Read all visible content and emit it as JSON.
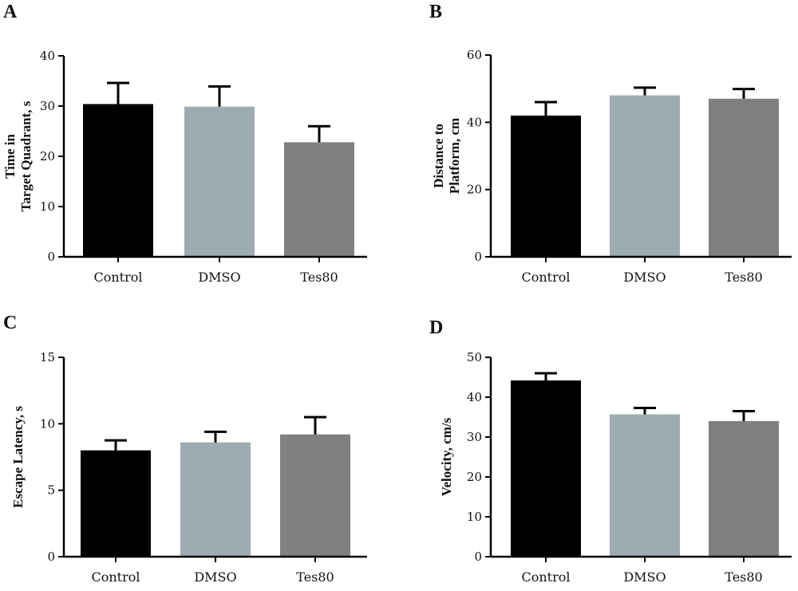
{
  "chart_data": [
    {
      "type": "bar",
      "panel": "A",
      "categories": [
        "Control",
        "DMSO",
        "Tes80"
      ],
      "values": [
        30.4,
        29.9,
        22.8
      ],
      "errors": [
        4.2,
        4.0,
        3.2
      ],
      "colors": [
        "#000000",
        "#9eacb1",
        "#808080"
      ],
      "ylabel": [
        "Time in",
        "Target Quadrant, s"
      ],
      "ylim": [
        0,
        40
      ],
      "yticks": [
        "0",
        "10",
        "20",
        "30",
        "40"
      ]
    },
    {
      "type": "bar",
      "panel": "B",
      "categories": [
        "Control",
        "DMSO",
        "Tes80"
      ],
      "values": [
        42.0,
        48.0,
        47.0
      ],
      "errors": [
        4.0,
        2.3,
        2.9
      ],
      "colors": [
        "#000000",
        "#9eacb1",
        "#808080"
      ],
      "ylabel": [
        "Distance to",
        "Platform, cm"
      ],
      "ylim": [
        0,
        60
      ],
      "yticks": [
        "0",
        "20",
        "40",
        "60"
      ]
    },
    {
      "type": "bar",
      "panel": "C",
      "categories": [
        "Control",
        "DMSO",
        "Tes80"
      ],
      "values": [
        8.0,
        8.6,
        9.2
      ],
      "errors": [
        0.75,
        0.8,
        1.3
      ],
      "colors": [
        "#000000",
        "#9eacb1",
        "#808080"
      ],
      "ylabel": [
        "Escape Latency, s"
      ],
      "ylim": [
        0,
        15
      ],
      "yticks": [
        "0",
        "5",
        "10",
        "15"
      ]
    },
    {
      "type": "bar",
      "panel": "D",
      "categories": [
        "Control",
        "DMSO",
        "Tes80"
      ],
      "values": [
        44.2,
        35.7,
        34.0
      ],
      "errors": [
        1.8,
        1.6,
        2.5
      ],
      "colors": [
        "#000000",
        "#9eacb1",
        "#808080"
      ],
      "ylabel": [
        "Velocity, cm/s"
      ],
      "ylim": [
        0,
        50
      ],
      "yticks": [
        "0",
        "10",
        "20",
        "30",
        "40",
        "50"
      ]
    }
  ]
}
